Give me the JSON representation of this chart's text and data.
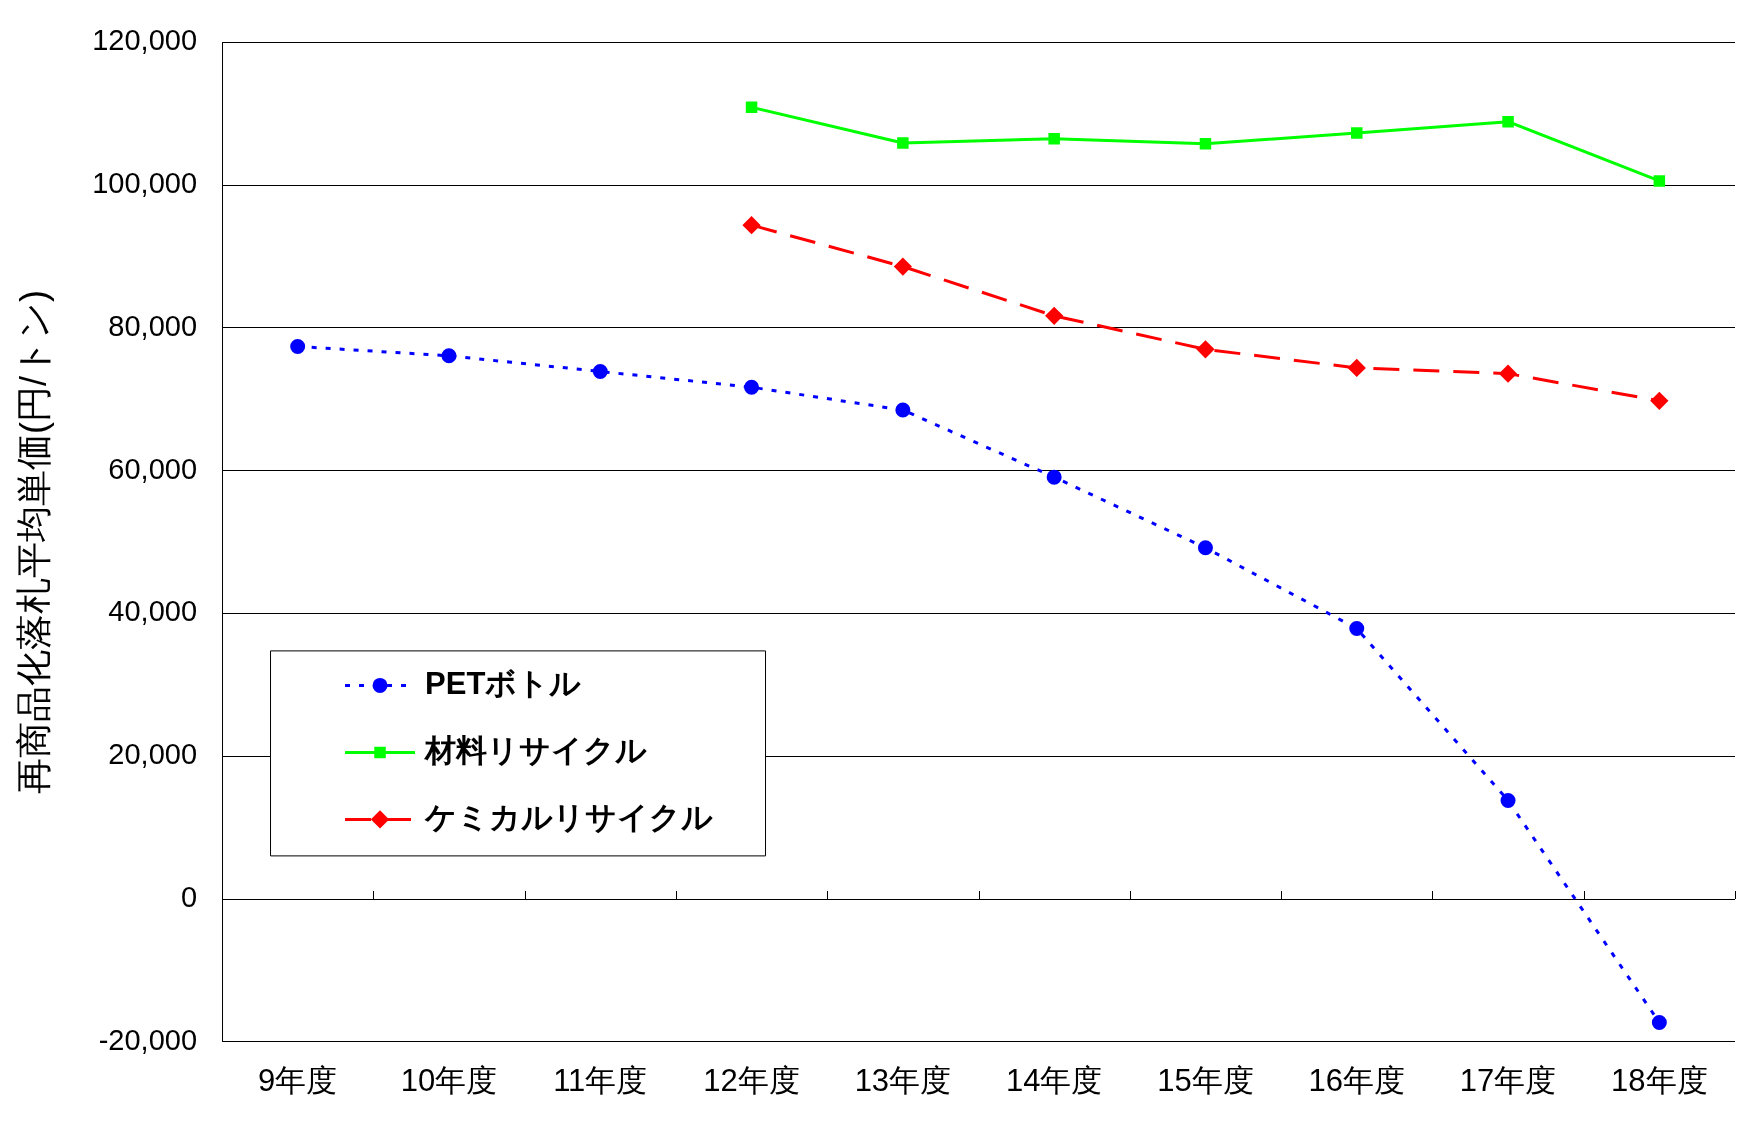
{
  "chart_data": {
    "type": "line",
    "ylabel": "再商品化落札平均単価(円/トン)",
    "categories": [
      "9年度",
      "10年度",
      "11年度",
      "12年度",
      "13年度",
      "14年度",
      "15年度",
      "16年度",
      "17年度",
      "18年度"
    ],
    "series": [
      {
        "name": "PETボトル",
        "color": "#0000ff",
        "marker": "circle",
        "line_style": "dotted",
        "values": [
          77400,
          76100,
          73900,
          71700,
          68500,
          59100,
          49200,
          37900,
          13800,
          -17300
        ]
      },
      {
        "name": "材料リサイクル",
        "color": "#00ff00",
        "marker": "square",
        "line_style": "solid",
        "values": [
          null,
          null,
          null,
          110900,
          105900,
          106500,
          105800,
          107300,
          108900,
          100600
        ]
      },
      {
        "name": "ケミカルリサイクル",
        "color": "#ff0000",
        "marker": "diamond",
        "line_style": "dashed",
        "values": [
          null,
          null,
          null,
          94400,
          88600,
          81700,
          77000,
          74400,
          73600,
          69800
        ]
      }
    ],
    "ylim": [
      -20000,
      120000
    ],
    "yticks": [
      {
        "value": -20000,
        "label": "-20,000"
      },
      0,
      {
        "value": 20000,
        "label": "20,000"
      },
      {
        "value": 40000,
        "label": "40,000"
      },
      {
        "value": 60000,
        "label": "60,000"
      },
      {
        "value": 80000,
        "label": "80,000"
      },
      {
        "value": 100000,
        "label": "100,000"
      },
      {
        "value": 120000,
        "label": "120,000"
      }
    ],
    "grid": "y",
    "legend": "bottom left"
  }
}
